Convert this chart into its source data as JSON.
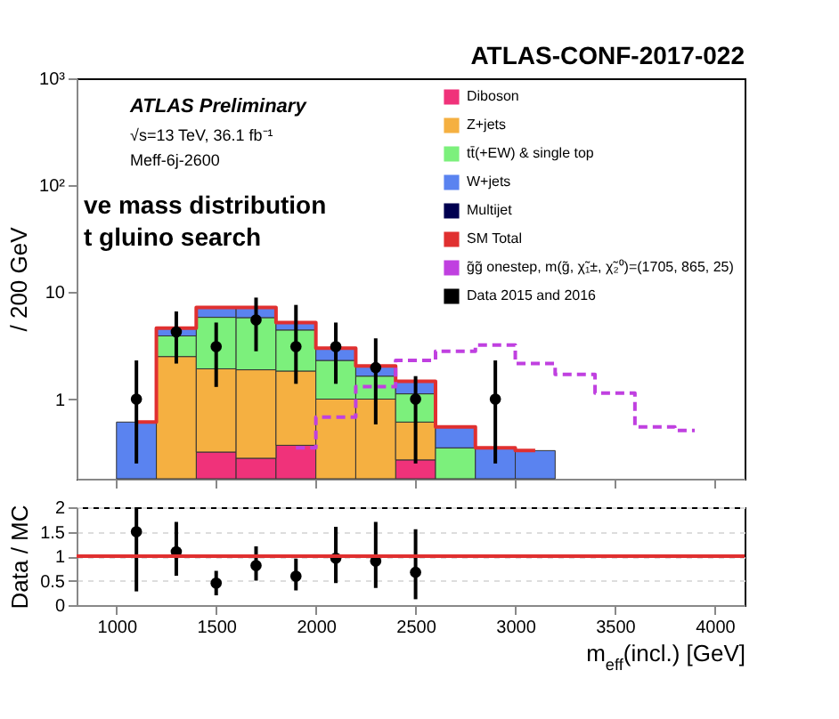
{
  "chart_data": [
    {
      "type": "bar",
      "stacked": true,
      "log": true,
      "x": [
        1100,
        1300,
        1500,
        1700,
        1900,
        2100,
        2300,
        2500,
        2700,
        2900,
        3100
      ],
      "ylabel": "/ 200 GeV",
      "ylim": [
        0.18,
        1000
      ],
      "xticks": [
        1000,
        1500,
        2000,
        2500,
        3000,
        3500,
        4000
      ],
      "yticks": [
        {
          "value": 1,
          "label": "1"
        },
        {
          "value": 10,
          "label": "10"
        },
        {
          "value": 100,
          "label": "10²"
        },
        {
          "value": 1000,
          "label": "10³"
        }
      ],
      "xlim": [
        800,
        4150
      ],
      "tick_labels": "y",
      "legend": "top right",
      "annotations": [
        "ATLAS-CONF-2017-022",
        "ATLAS Preliminary",
        "√s=13 TeV, 36.1 fb⁻¹",
        "Meff-6j-2600",
        "ve mass distribution",
        "t gluino search"
      ],
      "series": [
        {
          "name": "Diboson",
          "color": "#f0327a",
          "values": [
            null,
            null,
            0.32,
            0.28,
            0.37,
            null,
            null,
            0.27,
            null,
            null,
            null
          ]
        },
        {
          "name": "Z+jets",
          "color": "#f5b041",
          "values": [
            null,
            2.5,
            1.6,
            1.6,
            1.46,
            1.0,
            1.0,
            0.34,
            null,
            null,
            null
          ]
        },
        {
          "name": "tt̄(+EW) & single top",
          "color": "#7cf07c",
          "values": [
            null,
            1.4,
            3.9,
            3.9,
            2.6,
            1.3,
            0.64,
            0.51,
            0.35,
            null,
            null
          ]
        },
        {
          "name": "W+jets",
          "color": "#5a83f0",
          "values": [
            0.61,
            0.7,
            1.4,
            1.4,
            0.8,
            0.7,
            0.4,
            0.35,
            0.2,
            0.35,
            0.33
          ]
        },
        {
          "name": "Multijet",
          "color": "#000050",
          "values": [
            null,
            null,
            null,
            null,
            null,
            null,
            null,
            null,
            null,
            null,
            null
          ]
        },
        {
          "name": "SM Total",
          "type": "step",
          "color": "#e03030",
          "x": [
            1100,
            1300,
            1500,
            1700,
            1900,
            2100,
            2300,
            2500,
            2700,
            2900,
            3100
          ],
          "values": [
            0.61,
            4.6,
            7.2,
            7.2,
            5.2,
            3.0,
            2.04,
            1.47,
            0.55,
            0.35,
            0.33
          ]
        },
        {
          "name": "g̃g̃ onestep, m(g̃, χ̃₁±, χ̃₂⁰)=(1705, 865, 25)",
          "type": "step",
          "line_style": "dashed",
          "color": "#c040e0",
          "x": [
            1900,
            2100,
            2300,
            2500,
            2700,
            2900,
            3100,
            3300,
            3500,
            3700,
            3900
          ],
          "values": [
            0.35,
            0.68,
            1.31,
            2.3,
            2.8,
            3.2,
            2.15,
            1.7,
            1.14,
            0.55,
            0.51
          ]
        },
        {
          "name": "Data 2015 and 2016",
          "type": "scatter",
          "marker": "circle",
          "color": "#000000",
          "x": [
            1100,
            1300,
            1500,
            1700,
            1900,
            2100,
            2300,
            2500,
            2900
          ],
          "values": [
            1.0,
            4.25,
            3.1,
            5.5,
            3.1,
            3.1,
            1.97,
            1.0,
            1.0
          ],
          "errors": [
            [
              0.25,
              2.3
            ],
            [
              2.15,
              6.6
            ],
            [
              1.3,
              5.2
            ],
            [
              2.8,
              8.9
            ],
            [
              1.39,
              7.6
            ],
            [
              1.39,
              5.2
            ],
            [
              0.58,
              3.7
            ],
            [
              0.25,
              1.64
            ],
            [
              0.25,
              2.3
            ]
          ]
        }
      ]
    },
    {
      "type": "scatter",
      "color": "#000000",
      "marker": "circle",
      "x": [
        1100,
        1300,
        1500,
        1700,
        1900,
        2100,
        2300,
        2500
      ],
      "values": [
        1.5,
        1.09,
        0.45,
        0.81,
        0.59,
        0.96,
        0.9,
        0.67
      ],
      "errors": [
        [
          0.28,
          2
        ],
        [
          0.6,
          1.7
        ],
        [
          0.2,
          0.7
        ],
        [
          0.5,
          1.2
        ],
        [
          0.3,
          0.95
        ],
        [
          0.45,
          1.6
        ],
        [
          0.35,
          1.7
        ],
        [
          0.12,
          1.55
        ]
      ],
      "xlim": [
        800,
        4150
      ],
      "xticks": [
        1000,
        1500,
        2000,
        2500,
        3000,
        3500,
        4000
      ],
      "ylim": [
        0,
        2
      ],
      "yticks": [
        0,
        0.5,
        1,
        1.5,
        2
      ],
      "grid": "y",
      "xlabel": "m$_{eff}$(incl.) [GeV]",
      "ylabel": "Data / MC",
      "ref_lines": [
        {
          "axis": "y",
          "value": 1,
          "color": "#e03030"
        }
      ]
    }
  ]
}
